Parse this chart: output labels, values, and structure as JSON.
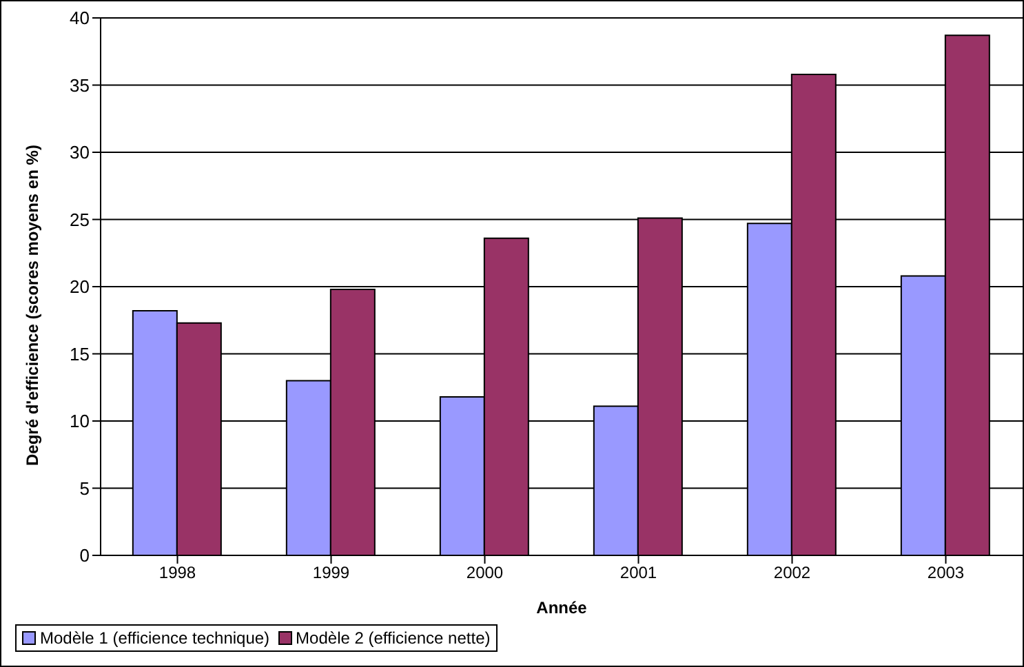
{
  "chart_data": {
    "type": "bar",
    "xlabel": "Année",
    "ylabel": "Degré d'efficience (scores moyens en %)",
    "categories": [
      "1998",
      "1999",
      "2000",
      "2001",
      "2002",
      "2003"
    ],
    "series": [
      {
        "name": "Modèle 1 (efficience technique)",
        "color": "#9999ff",
        "values": [
          18.2,
          13.0,
          11.8,
          11.1,
          24.7,
          20.8
        ]
      },
      {
        "name": "Modèle 2 (efficience nette)",
        "color": "#993366",
        "values": [
          17.3,
          19.8,
          23.6,
          25.1,
          35.8,
          38.7
        ]
      }
    ],
    "ylim": [
      0,
      40
    ],
    "yticks": [
      0,
      5,
      10,
      15,
      20,
      25,
      30,
      35,
      40
    ],
    "grid": "y",
    "legend": "bottom"
  }
}
